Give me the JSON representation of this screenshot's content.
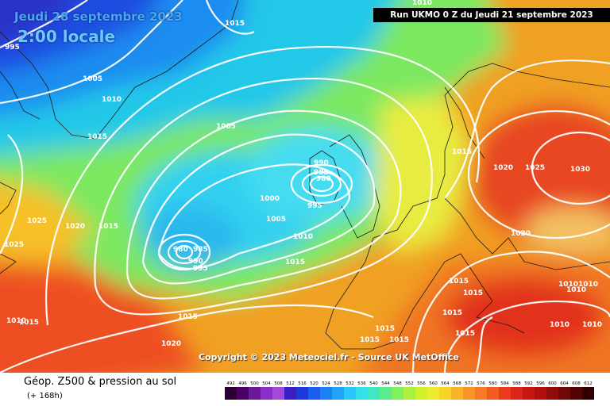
{
  "header": {
    "date": "Jeudi 28 septembre 2023",
    "local_time": "2:00 locale",
    "run": "Run UKMO 0 Z du Jeudi 21 septembre 2023"
  },
  "copyright": "Copyright © 2023 Meteociel.fr - Source UK MetOffice",
  "footer": {
    "parameter": "Géop. Z500 & pression au sol",
    "lead_time": "(+ 168h)"
  },
  "legend": {
    "values": [
      "492",
      "496",
      "500",
      "504",
      "508",
      "512",
      "516",
      "520",
      "524",
      "528",
      "532",
      "536",
      "540",
      "544",
      "548",
      "552",
      "556",
      "560",
      "564",
      "568",
      "572",
      "576",
      "580",
      "584",
      "588",
      "592",
      "596",
      "600",
      "604",
      "608",
      "612"
    ],
    "colors": [
      "#2a0033",
      "#4a0066",
      "#6a1a99",
      "#8a2fc9",
      "#a24ad8",
      "#3a1fc2",
      "#1f3adb",
      "#1a5ef0",
      "#1a82f5",
      "#20a4f7",
      "#29c6f9",
      "#33e0ec",
      "#3fe8c4",
      "#5bec8e",
      "#82ef5c",
      "#acef3c",
      "#d2ef2c",
      "#eeea2c",
      "#f8d228",
      "#fab428",
      "#fa9628",
      "#f77a24",
      "#f25c20",
      "#ea3c1c",
      "#dd2418",
      "#c81414",
      "#b01010",
      "#920c0c",
      "#740808",
      "#520404",
      "#300000"
    ]
  },
  "isobars": {
    "labels": [
      "995",
      "1005",
      "1010",
      "1015",
      "1015",
      "1005",
      "990",
      "985",
      "980",
      "995",
      "1000",
      "1005",
      "1010",
      "1015",
      "980",
      "985",
      "990",
      "995",
      "1025",
      "1025",
      "1020",
      "1015",
      "1015",
      "1020",
      "1015",
      "1015",
      "1010",
      "1020",
      "1020",
      "1025",
      "1030",
      "1015",
      "1015",
      "1015",
      "1015",
      "1015",
      "1015",
      "1015",
      "1010",
      "1010",
      "1010",
      "1010",
      "1010",
      "1010"
    ]
  }
}
